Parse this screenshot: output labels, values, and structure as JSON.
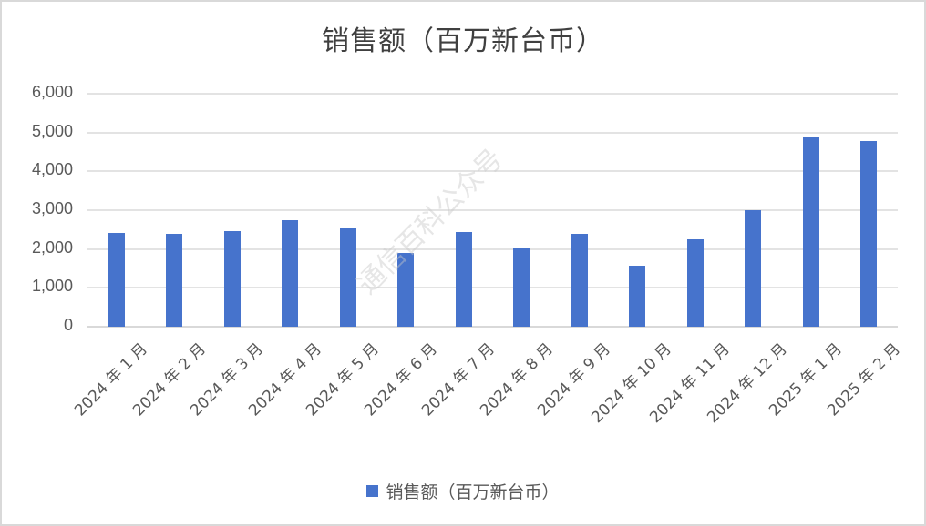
{
  "chart_data": {
    "type": "bar",
    "title": "销售额（百万新台币）",
    "xlabel": "",
    "ylabel": "",
    "ylim": [
      0,
      6000
    ],
    "yticks": [
      "0",
      "1,000",
      "2,000",
      "3,000",
      "4,000",
      "5,000",
      "6,000"
    ],
    "grid": true,
    "legend_position": "bottom",
    "categories": [
      "2024年1月",
      "2024年2月",
      "2024年3月",
      "2024年4月",
      "2024年5月",
      "2024年6月",
      "2024年7月",
      "2024年8月",
      "2024年9月",
      "2024年10月",
      "2024年11月",
      "2024年12月",
      "2025年1月",
      "2025年2月"
    ],
    "series": [
      {
        "name": "销售额（百万新台币）",
        "color": "#4673cc",
        "values": [
          2420,
          2400,
          2470,
          2750,
          2560,
          1890,
          2430,
          2030,
          2400,
          1580,
          2240,
          2990,
          4880,
          4780
        ]
      }
    ]
  },
  "xlabels": [
    "2024 年 1 月",
    "2024 年 2 月",
    "2024 年 3 月",
    "2024 年 4 月",
    "2024 年 5 月",
    "2024 年 6 月",
    "2024 年 7 月",
    "2024 年 8 月",
    "2024 年 9 月",
    "2024 年 10 月",
    "2024 年 11 月",
    "2024 年 12 月",
    "2025 年 1 月",
    "2025 年 2 月"
  ],
  "legend": {
    "label": "销售额（百万新台币）"
  },
  "watermark": "通信百科公众号"
}
